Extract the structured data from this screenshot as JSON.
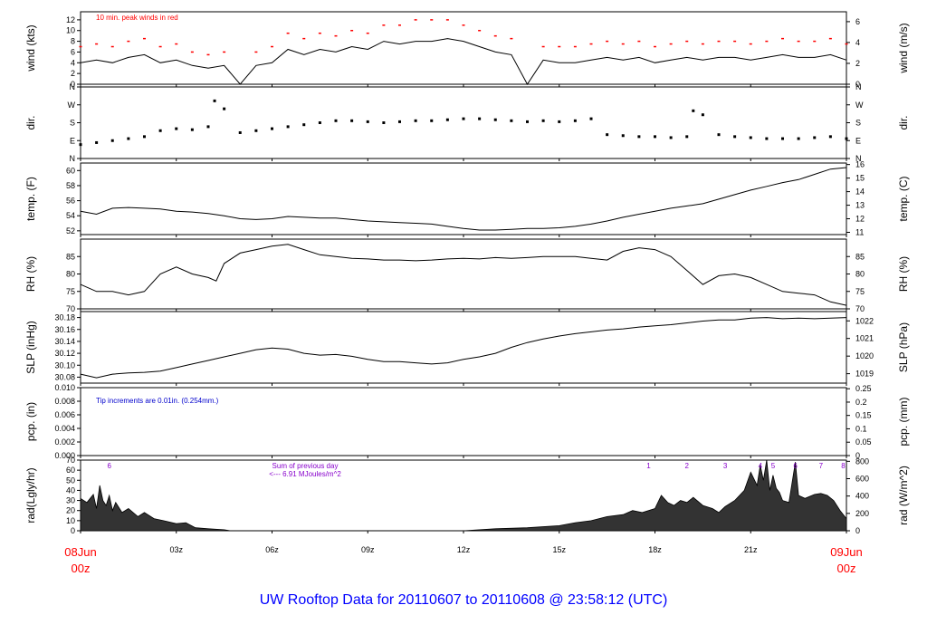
{
  "chart_data": {
    "type": "line",
    "title": "UW Rooftop Data for 20110607  to  20110608 @ 23:58:12  (UTC)",
    "colors": {
      "peak": "#ff0000",
      "note": "#0000cc",
      "radnote": "#8800cc",
      "title": "#0000ff",
      "date": "#ff0000"
    },
    "xaxis": {
      "range_hours": [
        0,
        24
      ],
      "ticks": [
        {
          "h": 0,
          "label": ""
        },
        {
          "h": 3,
          "label": "03z"
        },
        {
          "h": 6,
          "label": "06z"
        },
        {
          "h": 9,
          "label": "09z"
        },
        {
          "h": 12,
          "label": "12z"
        },
        {
          "h": 15,
          "label": "15z"
        },
        {
          "h": 18,
          "label": "18z"
        },
        {
          "h": 21,
          "label": "21z"
        },
        {
          "h": 24,
          "label": ""
        }
      ],
      "start_label": [
        "08Jun",
        "00z"
      ],
      "end_label": [
        "09Jun",
        "00z"
      ]
    },
    "panels": [
      {
        "id": "wind",
        "kind": "line",
        "ylabel_left": "wind (kts)",
        "ylabel_right": "wind (m/s)",
        "ylim": [
          0,
          13.5
        ],
        "yticks_left": [
          {
            "v": 0,
            "t": "0"
          },
          {
            "v": 2,
            "t": "2"
          },
          {
            "v": 4,
            "t": "4"
          },
          {
            "v": 6,
            "t": "6"
          },
          {
            "v": 8,
            "t": "8"
          },
          {
            "v": 10,
            "t": "10"
          },
          {
            "v": 12,
            "t": "12"
          }
        ],
        "yticks_right": [
          {
            "v": 0,
            "t": "0"
          },
          {
            "v": 3.89,
            "t": "2"
          },
          {
            "v": 7.78,
            "t": "4"
          },
          {
            "v": 11.66,
            "t": "6"
          }
        ],
        "note": "10 min. peak winds in red",
        "x": [
          0,
          0.5,
          1,
          1.5,
          2,
          2.5,
          3,
          3.5,
          4,
          4.5,
          5,
          5.5,
          6,
          6.5,
          7,
          7.5,
          8,
          8.5,
          9,
          9.5,
          10,
          10.5,
          11,
          11.5,
          12,
          12.5,
          13,
          13.5,
          14,
          14.5,
          15,
          15.5,
          16,
          16.5,
          17,
          17.5,
          18,
          18.5,
          19,
          19.5,
          20,
          20.5,
          21,
          21.5,
          22,
          22.5,
          23,
          23.5,
          24
        ],
        "y": [
          4,
          4.5,
          4,
          5,
          5.5,
          4,
          4.5,
          3.5,
          3,
          3.5,
          0,
          3.5,
          4,
          6.5,
          5.5,
          6.5,
          6,
          7,
          6.5,
          8,
          7.5,
          8,
          8,
          8.5,
          8,
          7,
          6,
          5.5,
          0,
          4.5,
          4,
          4,
          4.5,
          5,
          4.5,
          5,
          4,
          4.5,
          5,
          4.5,
          5,
          5,
          4.5,
          5,
          5.5,
          5,
          5,
          5.5,
          4.5
        ],
        "peak": [
          7,
          7.5,
          7,
          8,
          8.5,
          7,
          7.5,
          6,
          5.5,
          6,
          0,
          6,
          7,
          9.5,
          8.5,
          9.5,
          9,
          10,
          9.5,
          11,
          11,
          12,
          12,
          12,
          11,
          10,
          9,
          8.5,
          0,
          7,
          7,
          7,
          7.5,
          8,
          7.5,
          8,
          7,
          7.5,
          8,
          7.5,
          8,
          8,
          7.5,
          8,
          8.5,
          8,
          8,
          8.5,
          7.5
        ]
      },
      {
        "id": "dir",
        "kind": "points",
        "ylabel_left": "dir.",
        "ylabel_right": "dir.",
        "ylim": [
          0,
          360
        ],
        "yticks_left": [
          {
            "v": 0,
            "t": "N"
          },
          {
            "v": 90,
            "t": "E"
          },
          {
            "v": 180,
            "t": "S"
          },
          {
            "v": 270,
            "t": "W"
          },
          {
            "v": 360,
            "t": "N"
          }
        ],
        "yticks_right": [
          {
            "v": 0,
            "t": "N"
          },
          {
            "v": 90,
            "t": "E"
          },
          {
            "v": 180,
            "t": "S"
          },
          {
            "v": 270,
            "t": "W"
          },
          {
            "v": 360,
            "t": "N"
          }
        ],
        "x": [
          0,
          0.5,
          1,
          1.5,
          2,
          2.5,
          3,
          3.5,
          4,
          4.2,
          4.5,
          5,
          5.5,
          6,
          6.5,
          7,
          7.5,
          8,
          8.5,
          9,
          9.5,
          10,
          10.5,
          11,
          11.5,
          12,
          12.5,
          13,
          13.5,
          14,
          14.5,
          15,
          15.5,
          16,
          16.5,
          17,
          17.5,
          18,
          18.5,
          19,
          19.2,
          19.5,
          20,
          20.5,
          21,
          21.5,
          22,
          22.5,
          23,
          23.5,
          24
        ],
        "y": [
          70,
          80,
          90,
          100,
          110,
          140,
          150,
          145,
          160,
          290,
          250,
          130,
          140,
          150,
          160,
          170,
          180,
          190,
          190,
          185,
          180,
          185,
          190,
          190,
          195,
          200,
          200,
          195,
          190,
          185,
          190,
          185,
          190,
          200,
          120,
          115,
          110,
          110,
          105,
          110,
          240,
          220,
          120,
          110,
          105,
          100,
          100,
          100,
          105,
          110,
          100
        ]
      },
      {
        "id": "temp",
        "kind": "line",
        "ylabel_left": "temp. (F)",
        "ylabel_right": "temp. (C)",
        "ylim": [
          51.5,
          61
        ],
        "yticks_left": [
          {
            "v": 52,
            "t": "52"
          },
          {
            "v": 54,
            "t": "54"
          },
          {
            "v": 56,
            "t": "56"
          },
          {
            "v": 58,
            "t": "58"
          },
          {
            "v": 60,
            "t": "60"
          }
        ],
        "yticks_right": [
          {
            "v": 51.8,
            "t": "11"
          },
          {
            "v": 53.6,
            "t": "12"
          },
          {
            "v": 55.4,
            "t": "13"
          },
          {
            "v": 57.2,
            "t": "14"
          },
          {
            "v": 59,
            "t": "15"
          },
          {
            "v": 60.8,
            "t": "16"
          }
        ],
        "x": [
          0,
          0.5,
          1,
          1.5,
          2,
          2.5,
          3,
          3.5,
          4,
          4.5,
          5,
          5.5,
          6,
          6.5,
          7,
          7.5,
          8,
          8.5,
          9,
          9.5,
          10,
          10.5,
          11,
          11.5,
          12,
          12.5,
          13,
          13.5,
          14,
          14.5,
          15,
          15.5,
          16,
          16.5,
          17,
          17.5,
          18,
          18.5,
          19,
          19.5,
          20,
          20.5,
          21,
          21.5,
          22,
          22.5,
          23,
          23.5,
          24
        ],
        "y": [
          54.6,
          54.2,
          55,
          55.1,
          55,
          54.9,
          54.6,
          54.5,
          54.3,
          54,
          53.6,
          53.5,
          53.6,
          53.9,
          53.8,
          53.7,
          53.7,
          53.5,
          53.3,
          53.2,
          53.1,
          53,
          52.9,
          52.6,
          52.3,
          52.1,
          52.1,
          52.2,
          52.3,
          52.3,
          52.4,
          52.6,
          52.9,
          53.3,
          53.8,
          54.2,
          54.6,
          55,
          55.3,
          55.6,
          56.2,
          56.8,
          57.4,
          57.9,
          58.4,
          58.8,
          59.5,
          60.2,
          60.4
        ]
      },
      {
        "id": "rh",
        "kind": "line",
        "ylabel_left": "RH (%)",
        "ylabel_right": "RH (%)",
        "ylim": [
          70,
          90
        ],
        "yticks_left": [
          {
            "v": 70,
            "t": "70"
          },
          {
            "v": 75,
            "t": "75"
          },
          {
            "v": 80,
            "t": "80"
          },
          {
            "v": 85,
            "t": "85"
          }
        ],
        "yticks_right": [
          {
            "v": 70,
            "t": "70"
          },
          {
            "v": 75,
            "t": "75"
          },
          {
            "v": 80,
            "t": "80"
          },
          {
            "v": 85,
            "t": "85"
          }
        ],
        "x": [
          0,
          0.5,
          1,
          1.5,
          2,
          2.5,
          3,
          3.5,
          4,
          4.25,
          4.5,
          5,
          5.5,
          6,
          6.5,
          7,
          7.5,
          8,
          8.5,
          9,
          9.5,
          10,
          10.5,
          11,
          11.5,
          12,
          12.5,
          13,
          13.5,
          14,
          14.5,
          15,
          15.5,
          16,
          16.5,
          17,
          17.5,
          18,
          18.5,
          19,
          19.5,
          20,
          20.5,
          21,
          21.5,
          22,
          22.5,
          23,
          23.5,
          24
        ],
        "y": [
          77,
          75,
          75,
          74,
          75,
          80,
          82,
          80,
          79,
          78,
          83,
          86,
          87,
          88,
          88.5,
          87,
          85.5,
          85,
          84.5,
          84.3,
          84,
          84,
          83.8,
          84,
          84.3,
          84.5,
          84.3,
          84.7,
          84.5,
          84.7,
          85,
          85,
          85,
          84.5,
          84,
          86.5,
          87.5,
          87,
          85,
          81,
          77,
          79.5,
          80,
          79,
          77,
          75,
          74.5,
          74,
          72,
          71
        ]
      },
      {
        "id": "slp",
        "kind": "line",
        "ylabel_left": "SLP (inHg)",
        "ylabel_right": "SLP (hPa)",
        "ylim": [
          30.07,
          30.19
        ],
        "yticks_left": [
          {
            "v": 30.08,
            "t": "30.08"
          },
          {
            "v": 30.1,
            "t": "30.10"
          },
          {
            "v": 30.12,
            "t": "30.12"
          },
          {
            "v": 30.14,
            "t": "30.14"
          },
          {
            "v": 30.16,
            "t": "30.16"
          },
          {
            "v": 30.18,
            "t": "30.18"
          }
        ],
        "yticks_right": [
          {
            "v": 30.0858,
            "t": "1019"
          },
          {
            "v": 30.1153,
            "t": "1020"
          },
          {
            "v": 30.1449,
            "t": "1021"
          },
          {
            "v": 30.1744,
            "t": "1022"
          }
        ],
        "x": [
          0,
          0.5,
          1,
          1.5,
          2,
          2.5,
          3,
          3.5,
          4,
          4.5,
          5,
          5.5,
          6,
          6.5,
          7,
          7.5,
          8,
          8.5,
          9,
          9.5,
          10,
          10.5,
          11,
          11.5,
          12,
          12.5,
          13,
          13.5,
          14,
          14.5,
          15,
          15.5,
          16,
          16.5,
          17,
          17.5,
          18,
          18.5,
          19,
          19.5,
          20,
          20.5,
          21,
          21.5,
          22,
          22.5,
          23,
          23.5,
          24
        ],
        "y": [
          30.085,
          30.079,
          30.085,
          30.087,
          30.088,
          30.09,
          30.096,
          30.102,
          30.108,
          30.114,
          30.12,
          30.126,
          30.129,
          30.127,
          30.12,
          30.117,
          30.118,
          30.115,
          30.11,
          30.106,
          30.106,
          30.104,
          30.102,
          30.104,
          30.11,
          30.114,
          30.12,
          30.13,
          30.138,
          30.144,
          30.149,
          30.153,
          30.156,
          30.159,
          30.161,
          30.164,
          30.166,
          30.168,
          30.171,
          30.174,
          30.176,
          30.176,
          30.179,
          30.18,
          30.178,
          30.179,
          30.178,
          30.179,
          30.18
        ]
      },
      {
        "id": "pcp",
        "kind": "line",
        "ylabel_left": "pcp. (in)",
        "ylabel_right": "pcp. (mm)",
        "ylim": [
          0,
          0.01
        ],
        "yticks_left": [
          {
            "v": 0,
            "t": "0.000"
          },
          {
            "v": 0.002,
            "t": "0.002"
          },
          {
            "v": 0.004,
            "t": "0.004"
          },
          {
            "v": 0.006,
            "t": "0.006"
          },
          {
            "v": 0.008,
            "t": "0.008"
          },
          {
            "v": 0.01,
            "t": "0.010"
          }
        ],
        "yticks_right": [
          {
            "v": 0,
            "t": "0"
          },
          {
            "v": 0.00197,
            "t": "0.05"
          },
          {
            "v": 0.00394,
            "t": "0.1"
          },
          {
            "v": 0.00591,
            "t": "0.15"
          },
          {
            "v": 0.00787,
            "t": "0.2"
          },
          {
            "v": 0.00984,
            "t": "0.25"
          }
        ],
        "note": "Tip increments are 0.01in. (0.254mm.)",
        "x": [
          0,
          24
        ],
        "y": [
          0,
          0
        ]
      },
      {
        "id": "rad",
        "kind": "area",
        "ylabel_left": "rad(Lgly/hr)",
        "ylabel_right": "rad (W/m^2)",
        "ylim": [
          0,
          70
        ],
        "yticks_left": [
          {
            "v": 0,
            "t": "0"
          },
          {
            "v": 10,
            "t": "10"
          },
          {
            "v": 20,
            "t": "20"
          },
          {
            "v": 30,
            "t": "30"
          },
          {
            "v": 40,
            "t": "40"
          },
          {
            "v": 50,
            "t": "50"
          },
          {
            "v": 60,
            "t": "60"
          },
          {
            "v": 70,
            "t": "70"
          }
        ],
        "yticks_right": [
          {
            "v": 0,
            "t": "0"
          },
          {
            "v": 17.2,
            "t": "200"
          },
          {
            "v": 34.4,
            "t": "400"
          },
          {
            "v": 51.6,
            "t": "600"
          },
          {
            "v": 68.8,
            "t": "800"
          }
        ],
        "note_lines": [
          "Sum of previous day",
          "<--- 6.91 MJoules/m^2"
        ],
        "hour_markers": [
          {
            "h": 0.9,
            "t": "6"
          },
          {
            "h": 17.8,
            "t": "1"
          },
          {
            "h": 19,
            "t": "2"
          },
          {
            "h": 20.2,
            "t": "3"
          },
          {
            "h": 21.3,
            "t": "4"
          },
          {
            "h": 21.7,
            "t": "5"
          },
          {
            "h": 22.4,
            "t": "6"
          },
          {
            "h": 23.2,
            "t": "7"
          },
          {
            "h": 23.9,
            "t": "8"
          }
        ],
        "x": [
          0,
          0.2,
          0.4,
          0.5,
          0.6,
          0.7,
          0.8,
          0.9,
          1,
          1.1,
          1.3,
          1.5,
          1.8,
          2,
          2.3,
          2.6,
          3,
          3.3,
          3.6,
          4,
          4.5,
          4.7,
          12,
          13,
          14,
          15,
          15.5,
          16,
          16.5,
          17,
          17.3,
          17.6,
          18,
          18.2,
          18.4,
          18.6,
          18.8,
          19,
          19.2,
          19.5,
          19.8,
          20,
          20.2,
          20.5,
          20.8,
          21,
          21.2,
          21.3,
          21.4,
          21.5,
          21.6,
          21.7,
          21.8,
          21.9,
          22,
          22.2,
          22.4,
          22.5,
          22.7,
          23,
          23.2,
          23.4,
          23.6,
          23.8,
          24
        ],
        "y": [
          32,
          28,
          36,
          22,
          45,
          30,
          25,
          35,
          20,
          28,
          18,
          22,
          14,
          18,
          12,
          10,
          7,
          8,
          3,
          2,
          1,
          0,
          0,
          2,
          3,
          5,
          8,
          10,
          14,
          16,
          20,
          18,
          22,
          35,
          28,
          25,
          30,
          28,
          33,
          25,
          22,
          18,
          24,
          30,
          40,
          58,
          45,
          65,
          50,
          70,
          40,
          55,
          42,
          38,
          30,
          28,
          68,
          35,
          32,
          36,
          37,
          35,
          30,
          20,
          12
        ]
      }
    ]
  }
}
